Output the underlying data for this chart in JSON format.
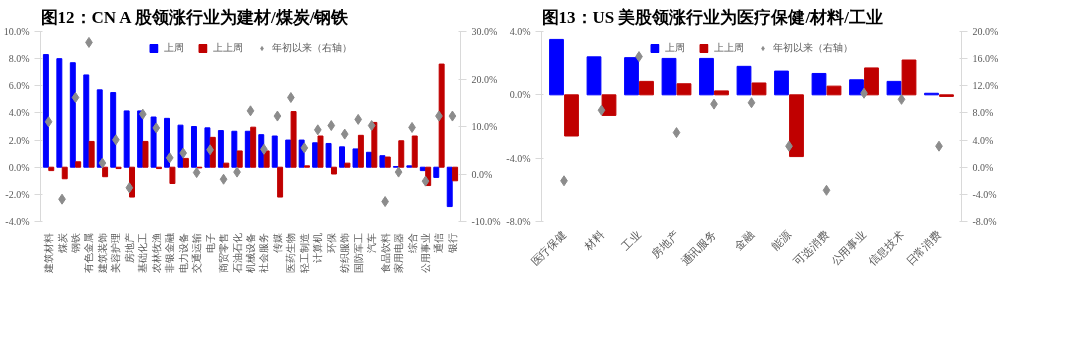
{
  "chart_data": [
    {
      "type": "bar",
      "title": "图12：CN A 股领涨行业为建材/煤炭/钢铁",
      "legend": "top",
      "grid": false,
      "categories": [
        "建筑材料",
        "煤炭",
        "钢铁",
        "有色金属",
        "建筑装饰",
        "美容护理",
        "房地产",
        "基础化工",
        "农林牧渔",
        "非银金融",
        "电力设备",
        "交通运输",
        "电子",
        "商贸零售",
        "石油石化",
        "机械设备",
        "社会服务",
        "传媒",
        "医药生物",
        "轻工制造",
        "计算机",
        "环保",
        "纺织服饰",
        "国防军工",
        "汽车",
        "食品饮料",
        "家用电器",
        "综合",
        "公用事业",
        "通信",
        "银行"
      ],
      "ylim": [
        -4,
        10
      ],
      "yticks": [
        {
          "value": -4,
          "label": "-4.0%"
        },
        {
          "value": -2,
          "label": "-2.0%"
        },
        {
          "value": 0,
          "label": "0.0%"
        },
        {
          "value": 2,
          "label": "2.0%"
        },
        {
          "value": 4,
          "label": "4.0%"
        },
        {
          "value": 6,
          "label": "6.0%"
        },
        {
          "value": 8,
          "label": "8.0%"
        },
        {
          "value": 10,
          "label": "10.0%"
        }
      ],
      "y2lim": [
        -10,
        30
      ],
      "y2ticks": [
        {
          "value": -10,
          "label": "-10.0%"
        },
        {
          "value": 0,
          "label": "0.0%"
        },
        {
          "value": 10,
          "label": "10.0%"
        },
        {
          "value": 20,
          "label": "20.0%"
        },
        {
          "value": 30,
          "label": "30.0%"
        }
      ],
      "series": [
        {
          "name": "上周",
          "color": "#0000ff",
          "values": [
            8.3,
            8.0,
            7.7,
            6.8,
            5.7,
            5.5,
            4.15,
            4.15,
            3.7,
            3.6,
            3.1,
            3.0,
            2.9,
            2.7,
            2.65,
            2.65,
            2.4,
            2.3,
            2.0,
            2.0,
            1.8,
            1.75,
            1.5,
            1.35,
            1.1,
            0.85,
            0.05,
            0.1,
            -0.25,
            -0.75,
            -2.9
          ]
        },
        {
          "name": "上上周",
          "color": "#c00000",
          "values": [
            -0.25,
            -0.85,
            0.4,
            1.9,
            -0.7,
            -0.1,
            -2.2,
            1.9,
            -0.1,
            -1.2,
            0.65,
            -0.05,
            2.2,
            0.3,
            1.2,
            2.95,
            1.2,
            -2.2,
            4.1,
            0.1,
            2.3,
            -0.5,
            0.3,
            2.35,
            3.3,
            0.75,
            1.95,
            2.3,
            -1.35,
            7.6,
            -1.0
          ]
        },
        {
          "name": "年初以来（右轴）",
          "type": "scatter",
          "marker": "diamond",
          "axis": "y2",
          "color": "#8c8c8c",
          "values": [
            11.0,
            -5.3,
            16.1,
            27.7,
            2.3,
            7.2,
            -2.9,
            12.6,
            9.7,
            3.4,
            4.4,
            0.3,
            5.1,
            -1.1,
            0.4,
            13.3,
            5.2,
            12.2,
            16.1,
            5.5,
            9.3,
            10.2,
            8.4,
            11.5,
            10.2,
            -5.8,
            0.4,
            9.8,
            -1.5,
            12.2,
            12.2
          ]
        }
      ]
    },
    {
      "type": "bar",
      "title": "图13：US 美股领涨行业为医疗保健/材料/工业",
      "legend": "top",
      "grid": false,
      "categories": [
        "医疗保健",
        "材料",
        "工业",
        "房地产",
        "通讯服务",
        "金融",
        "能源",
        "可选消费",
        "公用事业",
        "信息技术",
        "日常消费"
      ],
      "ylim": [
        -8,
        4
      ],
      "yticks": [
        {
          "value": -8,
          "label": "-8.0%"
        },
        {
          "value": -4,
          "label": "-4.0%"
        },
        {
          "value": 0,
          "label": "0.0%"
        },
        {
          "value": 4,
          "label": "4.0%"
        }
      ],
      "y2lim": [
        -8,
        20
      ],
      "y2ticks": [
        {
          "value": -8,
          "label": "-8.0%"
        },
        {
          "value": -4,
          "label": "-4.0%"
        },
        {
          "value": 0,
          "label": "0.0%"
        },
        {
          "value": 4,
          "label": "4.0%"
        },
        {
          "value": 8,
          "label": "8.0%"
        },
        {
          "value": 12,
          "label": "12.0%"
        },
        {
          "value": 16,
          "label": "16.0%"
        },
        {
          "value": 20,
          "label": "20.0%"
        }
      ],
      "series": [
        {
          "name": "上周",
          "color": "#0000ff",
          "values": [
            3.5,
            2.4,
            2.35,
            2.3,
            2.3,
            1.8,
            1.5,
            1.35,
            0.95,
            0.85,
            0.1
          ]
        },
        {
          "name": "上上周",
          "color": "#c00000",
          "values": [
            -2.6,
            -1.3,
            0.85,
            0.7,
            0.25,
            0.75,
            -3.9,
            0.55,
            1.7,
            2.2,
            -0.1
          ]
        },
        {
          "name": "年初以来（右轴）",
          "type": "scatter",
          "marker": "diamond",
          "axis": "y2",
          "color": "#8c8c8c",
          "values": [
            -2.0,
            8.4,
            16.3,
            5.1,
            9.3,
            9.5,
            3.1,
            -3.4,
            10.9,
            10.0,
            3.1
          ]
        }
      ]
    }
  ]
}
